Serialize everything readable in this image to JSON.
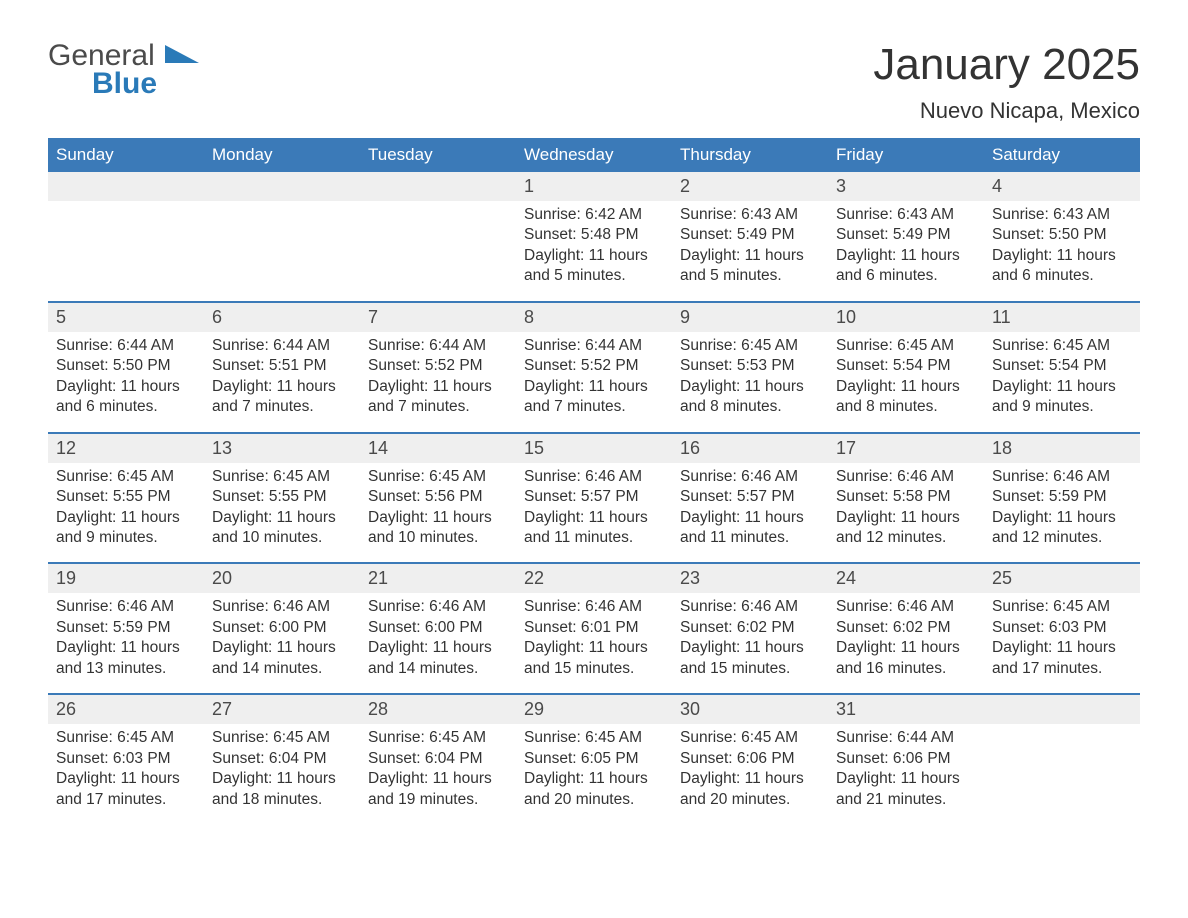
{
  "logo": {
    "text_gray": "General",
    "text_blue": "Blue",
    "shape_color": "#2a7ab8"
  },
  "title": "January 2025",
  "location": "Nuevo Nicapa, Mexico",
  "colors": {
    "header_bg": "#3b7ab8",
    "header_text": "#ffffff",
    "daynum_bg": "#efefef",
    "daynum_text": "#4a4a4a",
    "body_text": "#333333",
    "week_border": "#3b7ab8",
    "page_bg": "#ffffff"
  },
  "font": {
    "family": "Arial",
    "title_size_pt": 33,
    "location_size_pt": 17,
    "header_size_pt": 13,
    "daynum_size_pt": 14,
    "body_size_pt": 12
  },
  "layout": {
    "columns": 7,
    "weeks": 5,
    "leading_blanks": 3,
    "trailing_blanks": 1
  },
  "day_names": [
    "Sunday",
    "Monday",
    "Tuesday",
    "Wednesday",
    "Thursday",
    "Friday",
    "Saturday"
  ],
  "days": [
    {
      "n": 1,
      "sunrise": "6:42 AM",
      "sunset": "5:48 PM",
      "d1": "Daylight: 11 hours",
      "d2": "and 5 minutes."
    },
    {
      "n": 2,
      "sunrise": "6:43 AM",
      "sunset": "5:49 PM",
      "d1": "Daylight: 11 hours",
      "d2": "and 5 minutes."
    },
    {
      "n": 3,
      "sunrise": "6:43 AM",
      "sunset": "5:49 PM",
      "d1": "Daylight: 11 hours",
      "d2": "and 6 minutes."
    },
    {
      "n": 4,
      "sunrise": "6:43 AM",
      "sunset": "5:50 PM",
      "d1": "Daylight: 11 hours",
      "d2": "and 6 minutes."
    },
    {
      "n": 5,
      "sunrise": "6:44 AM",
      "sunset": "5:50 PM",
      "d1": "Daylight: 11 hours",
      "d2": "and 6 minutes."
    },
    {
      "n": 6,
      "sunrise": "6:44 AM",
      "sunset": "5:51 PM",
      "d1": "Daylight: 11 hours",
      "d2": "and 7 minutes."
    },
    {
      "n": 7,
      "sunrise": "6:44 AM",
      "sunset": "5:52 PM",
      "d1": "Daylight: 11 hours",
      "d2": "and 7 minutes."
    },
    {
      "n": 8,
      "sunrise": "6:44 AM",
      "sunset": "5:52 PM",
      "d1": "Daylight: 11 hours",
      "d2": "and 7 minutes."
    },
    {
      "n": 9,
      "sunrise": "6:45 AM",
      "sunset": "5:53 PM",
      "d1": "Daylight: 11 hours",
      "d2": "and 8 minutes."
    },
    {
      "n": 10,
      "sunrise": "6:45 AM",
      "sunset": "5:54 PM",
      "d1": "Daylight: 11 hours",
      "d2": "and 8 minutes."
    },
    {
      "n": 11,
      "sunrise": "6:45 AM",
      "sunset": "5:54 PM",
      "d1": "Daylight: 11 hours",
      "d2": "and 9 minutes."
    },
    {
      "n": 12,
      "sunrise": "6:45 AM",
      "sunset": "5:55 PM",
      "d1": "Daylight: 11 hours",
      "d2": "and 9 minutes."
    },
    {
      "n": 13,
      "sunrise": "6:45 AM",
      "sunset": "5:55 PM",
      "d1": "Daylight: 11 hours",
      "d2": "and 10 minutes."
    },
    {
      "n": 14,
      "sunrise": "6:45 AM",
      "sunset": "5:56 PM",
      "d1": "Daylight: 11 hours",
      "d2": "and 10 minutes."
    },
    {
      "n": 15,
      "sunrise": "6:46 AM",
      "sunset": "5:57 PM",
      "d1": "Daylight: 11 hours",
      "d2": "and 11 minutes."
    },
    {
      "n": 16,
      "sunrise": "6:46 AM",
      "sunset": "5:57 PM",
      "d1": "Daylight: 11 hours",
      "d2": "and 11 minutes."
    },
    {
      "n": 17,
      "sunrise": "6:46 AM",
      "sunset": "5:58 PM",
      "d1": "Daylight: 11 hours",
      "d2": "and 12 minutes."
    },
    {
      "n": 18,
      "sunrise": "6:46 AM",
      "sunset": "5:59 PM",
      "d1": "Daylight: 11 hours",
      "d2": "and 12 minutes."
    },
    {
      "n": 19,
      "sunrise": "6:46 AM",
      "sunset": "5:59 PM",
      "d1": "Daylight: 11 hours",
      "d2": "and 13 minutes."
    },
    {
      "n": 20,
      "sunrise": "6:46 AM",
      "sunset": "6:00 PM",
      "d1": "Daylight: 11 hours",
      "d2": "and 14 minutes."
    },
    {
      "n": 21,
      "sunrise": "6:46 AM",
      "sunset": "6:00 PM",
      "d1": "Daylight: 11 hours",
      "d2": "and 14 minutes."
    },
    {
      "n": 22,
      "sunrise": "6:46 AM",
      "sunset": "6:01 PM",
      "d1": "Daylight: 11 hours",
      "d2": "and 15 minutes."
    },
    {
      "n": 23,
      "sunrise": "6:46 AM",
      "sunset": "6:02 PM",
      "d1": "Daylight: 11 hours",
      "d2": "and 15 minutes."
    },
    {
      "n": 24,
      "sunrise": "6:46 AM",
      "sunset": "6:02 PM",
      "d1": "Daylight: 11 hours",
      "d2": "and 16 minutes."
    },
    {
      "n": 25,
      "sunrise": "6:45 AM",
      "sunset": "6:03 PM",
      "d1": "Daylight: 11 hours",
      "d2": "and 17 minutes."
    },
    {
      "n": 26,
      "sunrise": "6:45 AM",
      "sunset": "6:03 PM",
      "d1": "Daylight: 11 hours",
      "d2": "and 17 minutes."
    },
    {
      "n": 27,
      "sunrise": "6:45 AM",
      "sunset": "6:04 PM",
      "d1": "Daylight: 11 hours",
      "d2": "and 18 minutes."
    },
    {
      "n": 28,
      "sunrise": "6:45 AM",
      "sunset": "6:04 PM",
      "d1": "Daylight: 11 hours",
      "d2": "and 19 minutes."
    },
    {
      "n": 29,
      "sunrise": "6:45 AM",
      "sunset": "6:05 PM",
      "d1": "Daylight: 11 hours",
      "d2": "and 20 minutes."
    },
    {
      "n": 30,
      "sunrise": "6:45 AM",
      "sunset": "6:06 PM",
      "d1": "Daylight: 11 hours",
      "d2": "and 20 minutes."
    },
    {
      "n": 31,
      "sunrise": "6:44 AM",
      "sunset": "6:06 PM",
      "d1": "Daylight: 11 hours",
      "d2": "and 21 minutes."
    }
  ],
  "labels": {
    "sunrise_prefix": "Sunrise: ",
    "sunset_prefix": "Sunset: "
  }
}
